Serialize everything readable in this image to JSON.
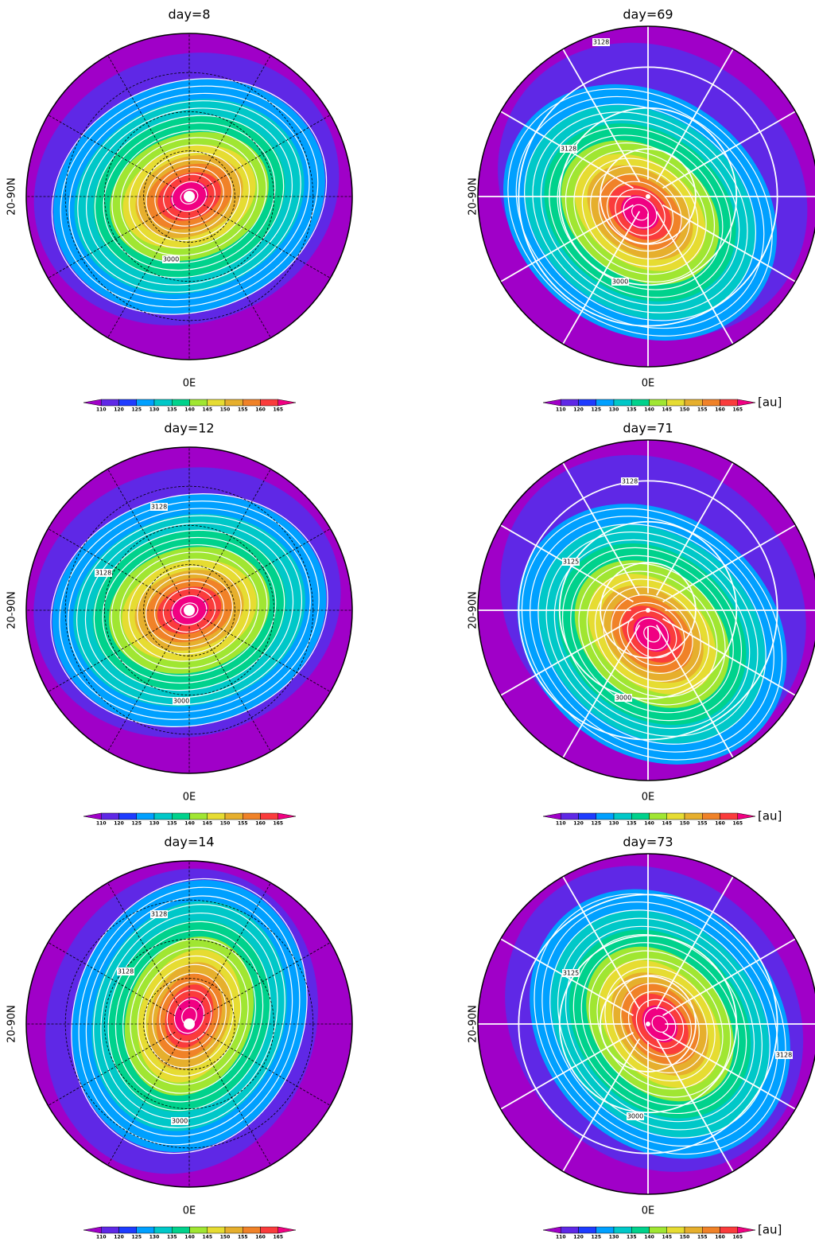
{
  "panels": [
    {
      "title": "day=8",
      "ylabel": "20-90N",
      "xlabel": "0E",
      "contour_labels": [
        "3000"
      ],
      "style": "continents",
      "show_unit": false
    },
    {
      "title": "day=69",
      "ylabel": "20-90N",
      "xlabel": "0E",
      "contour_labels": [
        "3128",
        "3128",
        "3000"
      ],
      "style": "plain",
      "show_unit": true
    },
    {
      "title": "day=12",
      "ylabel": "20-90N",
      "xlabel": "0E",
      "contour_labels": [
        "3128",
        "3128",
        "3000"
      ],
      "style": "continents",
      "show_unit": false
    },
    {
      "title": "day=71",
      "ylabel": "20-90N",
      "xlabel": "0E",
      "contour_labels": [
        "3128",
        "3125",
        "3000"
      ],
      "style": "plain",
      "show_unit": true
    },
    {
      "title": "day=14",
      "ylabel": "20-90N",
      "xlabel": "0E",
      "contour_labels": [
        "3128",
        "3128",
        "3000"
      ],
      "style": "continents",
      "show_unit": false
    },
    {
      "title": "day=73",
      "ylabel": "20-90N",
      "xlabel": "0E",
      "contour_labels": [
        "3125",
        "3128",
        "3000"
      ],
      "style": "plain",
      "show_unit": true
    }
  ],
  "colorbar": {
    "ticks": [
      110,
      120,
      125,
      130,
      135,
      140,
      145,
      150,
      155,
      160,
      165
    ],
    "colors": [
      "#a000c8",
      "#5f28e6",
      "#1e3cff",
      "#00a0ff",
      "#00c8c8",
      "#00d28c",
      "#a0e632",
      "#e6dc32",
      "#e6af2d",
      "#f08228",
      "#fa3c3c",
      "#f00082"
    ],
    "unit": "[au]"
  }
}
